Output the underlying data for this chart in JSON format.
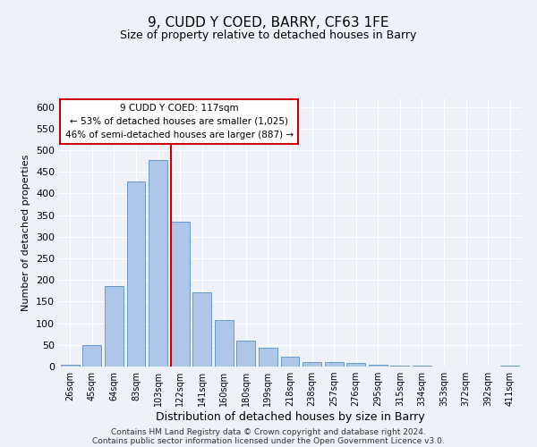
{
  "title": "9, CUDD Y COED, BARRY, CF63 1FE",
  "subtitle": "Size of property relative to detached houses in Barry",
  "xlabel": "Distribution of detached houses by size in Barry",
  "ylabel": "Number of detached properties",
  "categories": [
    "26sqm",
    "45sqm",
    "64sqm",
    "83sqm",
    "103sqm",
    "122sqm",
    "141sqm",
    "160sqm",
    "180sqm",
    "199sqm",
    "218sqm",
    "238sqm",
    "257sqm",
    "276sqm",
    "295sqm",
    "315sqm",
    "334sqm",
    "353sqm",
    "372sqm",
    "392sqm",
    "411sqm"
  ],
  "values": [
    5,
    50,
    187,
    428,
    477,
    335,
    172,
    107,
    60,
    44,
    23,
    10,
    10,
    8,
    5,
    3,
    2,
    1,
    1,
    1,
    2
  ],
  "bar_color": "#aec6e8",
  "bar_edge_color": "#5a8fc2",
  "marker_label": "9 CUDD Y COED: 117sqm",
  "annotation_line1": "← 53% of detached houses are smaller (1,025)",
  "annotation_line2": "46% of semi-detached houses are larger (887) →",
  "vline_color": "#cc0000",
  "vline_index": 5,
  "ylim": [
    0,
    620
  ],
  "yticks": [
    0,
    50,
    100,
    150,
    200,
    250,
    300,
    350,
    400,
    450,
    500,
    550,
    600
  ],
  "footer1": "Contains HM Land Registry data © Crown copyright and database right 2024.",
  "footer2": "Contains public sector information licensed under the Open Government Licence v3.0.",
  "bg_color": "#eef2f8",
  "axes_bg_color": "#eef2f8",
  "grid_color": "#ffffff"
}
